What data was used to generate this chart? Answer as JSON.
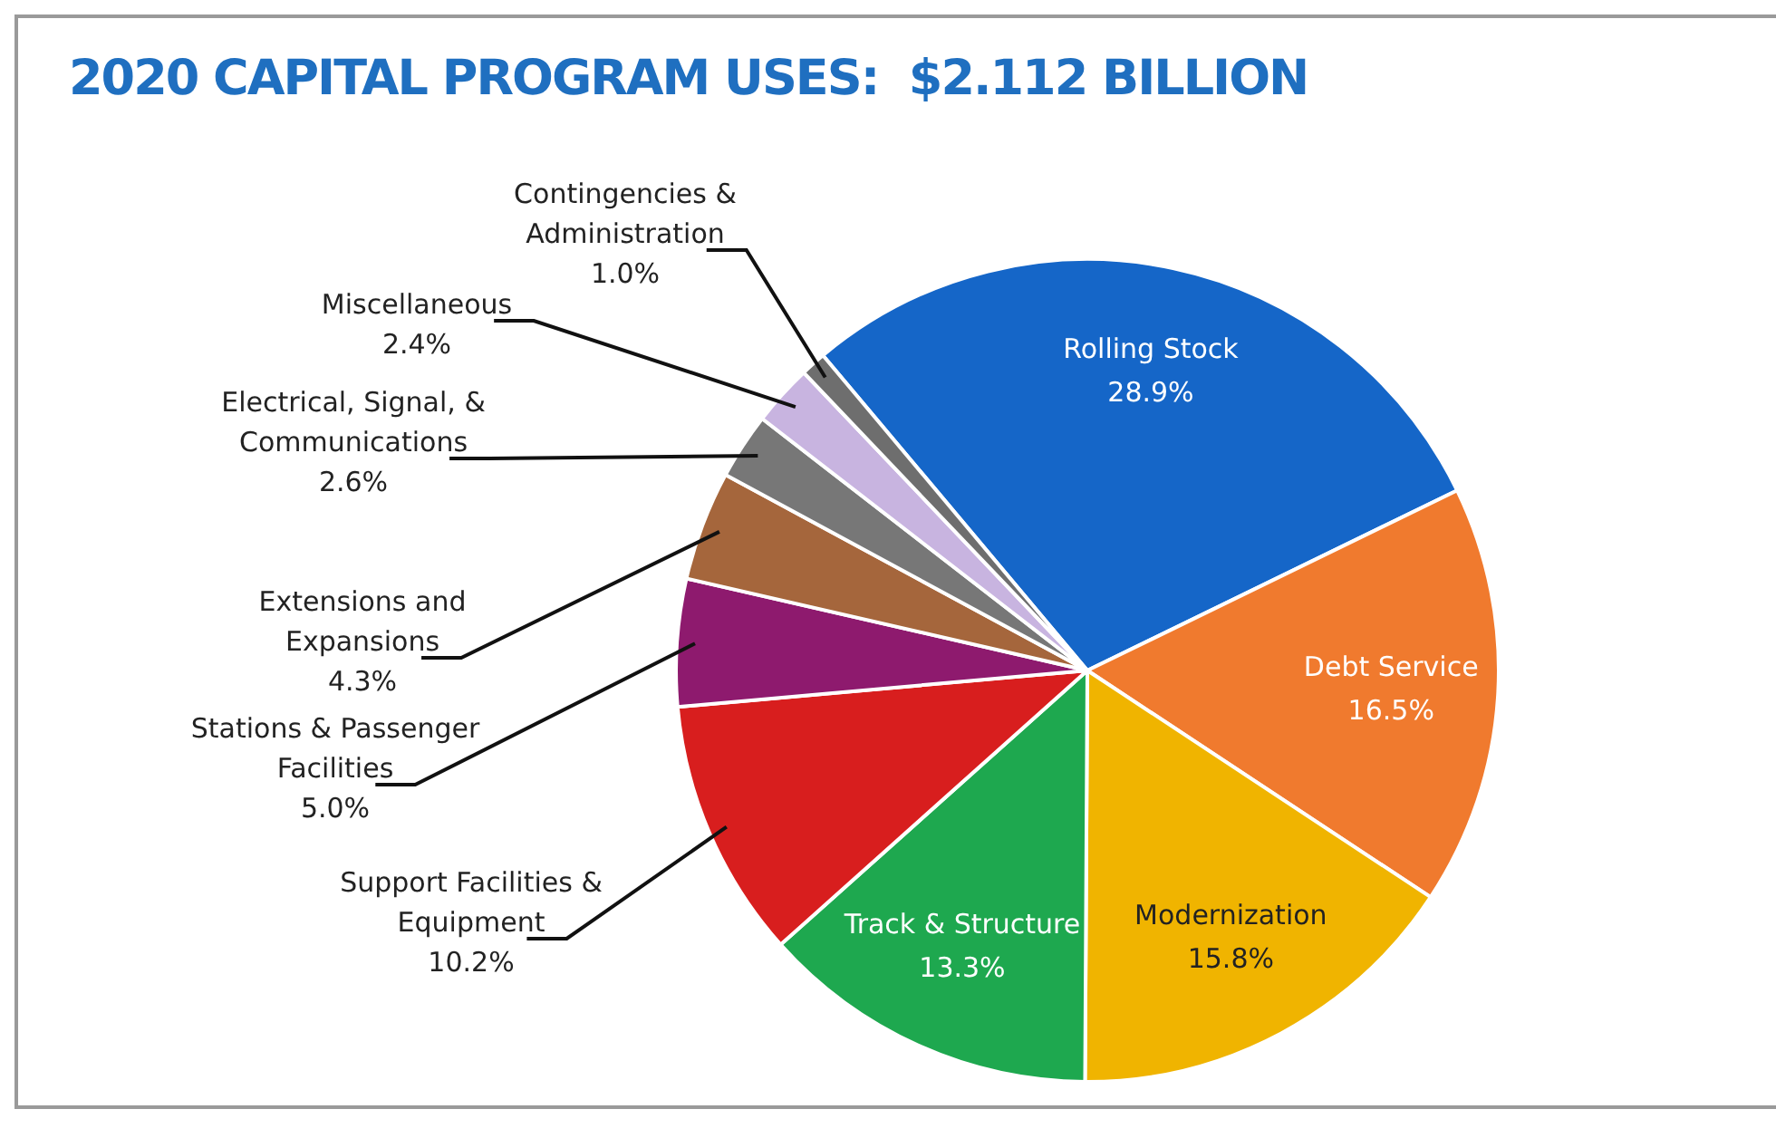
{
  "chart_data": {
    "type": "pie",
    "title": "2020 CAPITAL PROGRAM USES:  $2.112 BILLION",
    "categories": [
      "Rolling Stock",
      "Debt Service",
      "Modernization",
      "Track & Structure",
      "Support Facilities & Equipment",
      "Stations & Passenger Facilities",
      "Extensions and Expansions",
      "Electrical, Signal, & Communications",
      "Miscellaneous",
      "Contingencies & Administration"
    ],
    "values": [
      28.9,
      16.5,
      15.8,
      13.3,
      10.2,
      5.0,
      4.3,
      2.6,
      2.4,
      1.0
    ],
    "value_labels": [
      "28.9%",
      "16.5%",
      "15.8%",
      "13.3%",
      "10.2%",
      "5.0%",
      "4.3%",
      "2.6%",
      "2.4%",
      "1.0%"
    ],
    "colors": [
      "#1566c8",
      "#f07a2e",
      "#f0b400",
      "#1ea84f",
      "#d81e1e",
      "#8e1a6e",
      "#a5663c",
      "#777777",
      "#c8b4e0",
      "#6e6e6e"
    ],
    "legend": false
  }
}
